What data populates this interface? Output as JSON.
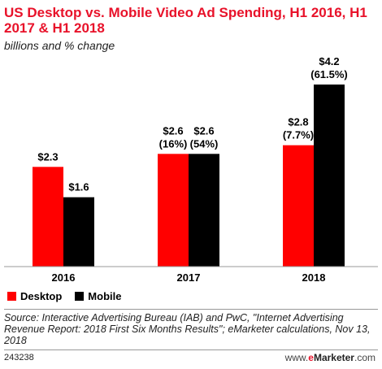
{
  "header": {
    "title": "US Desktop vs. Mobile Video Ad Spending, H1 2016, H1 2017 & H1 2018",
    "subtitle": "billions and % change"
  },
  "chart_data": {
    "type": "bar",
    "title": "US Desktop vs. Mobile Video Ad Spending, H1 2016, H1 2017 & H1 2018",
    "subtitle": "billions and % change",
    "categories": [
      "2016",
      "2017",
      "2018"
    ],
    "series": [
      {
        "name": "Desktop",
        "color": "#ff0000",
        "values": [
          2.3,
          2.6,
          2.8
        ],
        "labels": [
          "$2.3",
          "$2.6\n(16%)",
          "$2.8\n(7.7%)"
        ]
      },
      {
        "name": "Mobile",
        "color": "#000000",
        "values": [
          1.6,
          2.6,
          4.2
        ],
        "labels": [
          "$1.6",
          "$2.6\n(54%)",
          "$4.2\n(61.5%)"
        ]
      }
    ],
    "ylim": [
      0,
      4.4
    ],
    "grid": false,
    "legend_position": "bottom-left"
  },
  "legend": {
    "items": [
      {
        "label": "Desktop",
        "color": "#ff0000"
      },
      {
        "label": "Mobile",
        "color": "#000000"
      }
    ]
  },
  "footer": {
    "source": "Source: Interactive Advertising Bureau (IAB) and PwC, \"Internet Advertising Revenue Report: 2018 First Six Months Results\"; eMarketer calculations, Nov 13, 2018",
    "chart_id": "243238",
    "brand_prefix": "www.",
    "brand_e": "e",
    "brand_name": "Marketer",
    "brand_suffix": ".com"
  }
}
